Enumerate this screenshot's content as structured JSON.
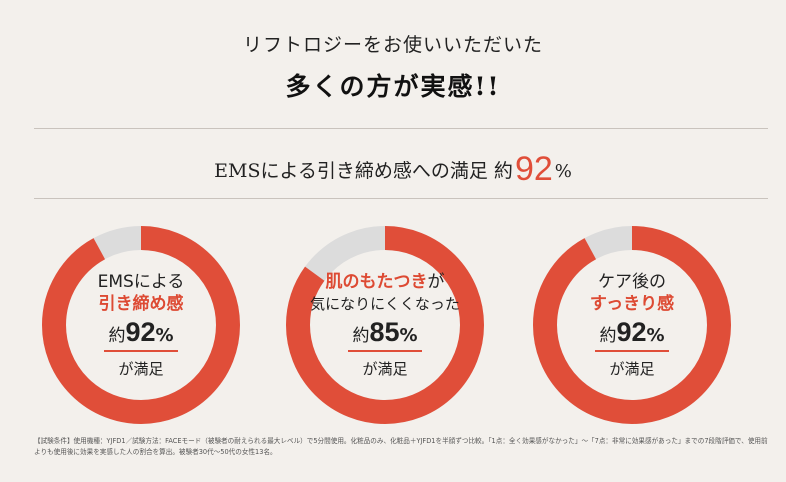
{
  "header": {
    "line1": "リフトロジーをお使いいただいた",
    "line2": "多くの方が実感!!"
  },
  "summary": {
    "text": "EMSによる引き締め感への満足 約",
    "value": "92",
    "unit": "%"
  },
  "charts": [
    {
      "value": 92,
      "label_top": "EMSによる",
      "label_mid": "引き締め感",
      "label_mid_suffix": "",
      "prefix": "約",
      "value_text": "92",
      "unit": "%",
      "satisfied": "が満足"
    },
    {
      "value": 85,
      "label_top": "肌のもたつき",
      "label_top_suffix": "が",
      "label_mid": "気になりにくくなった",
      "prefix": "約",
      "value_text": "85",
      "unit": "%",
      "satisfied": "が満足"
    },
    {
      "value": 92,
      "label_top": "ケア後の",
      "label_mid": "すっきり感",
      "prefix": "約",
      "value_text": "92",
      "unit": "%",
      "satisfied": "が満足"
    }
  ],
  "colors": {
    "accent": "#e04e39",
    "ring_gray": "#dcdcdc",
    "background": "#f3f0ec"
  },
  "footnote": "【試験条件】使用機種：YJFD1／試験方法：FACEモード（被験者の耐えられる最大レベル）で5分間使用。化粧品のみ、化粧品＋YJFD1を半顔ずつ比較。「1点：全く効果感がなかった」〜「7点：非常に効果感があった」までの7段階評価で、使用前よりも使用後に効果を実感した人の割合を算出。被験者30代〜50代の女性13名。"
}
